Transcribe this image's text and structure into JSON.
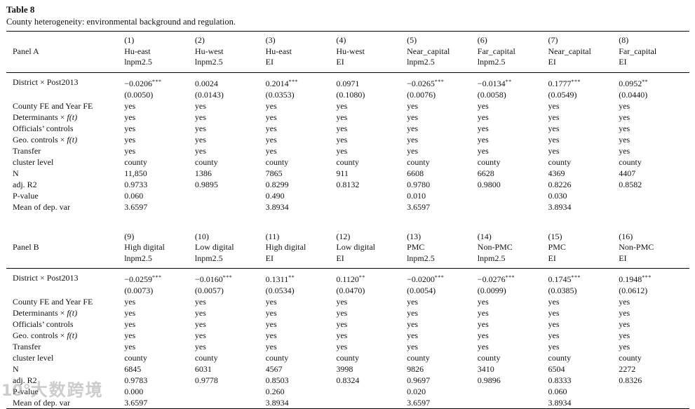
{
  "watermark": {
    "prefix": "10°",
    "text": "大数跨境"
  },
  "table": {
    "label": "Table 8",
    "caption": "County heterogeneity: environmental background and regulation.",
    "panels": [
      {
        "name": "Panel A",
        "columns": [
          {
            "num": "(1)",
            "group": "Hu-east",
            "depvar": "lnpm2.5"
          },
          {
            "num": "(2)",
            "group": "Hu-west",
            "depvar": "lnpm2.5"
          },
          {
            "num": "(3)",
            "group": "Hu-east",
            "depvar": "EI"
          },
          {
            "num": "(4)",
            "group": "Hu-west",
            "depvar": "EI"
          },
          {
            "num": "(5)",
            "group": "Near_capital",
            "depvar": "lnpm2.5"
          },
          {
            "num": "(6)",
            "group": "Far_capital",
            "depvar": "lnpm2.5"
          },
          {
            "num": "(7)",
            "group": "Near_capital",
            "depvar": "EI"
          },
          {
            "num": "(8)",
            "group": "Far_capital",
            "depvar": "EI"
          }
        ],
        "coef_row": {
          "label": {
            "pre": "District × Post2013"
          },
          "cells": [
            {
              "v": "−0.0206",
              "s": "***"
            },
            {
              "v": "0.0024",
              "s": ""
            },
            {
              "v": "0.2014",
              "s": "***"
            },
            {
              "v": "0.0971",
              "s": ""
            },
            {
              "v": "−0.0265",
              "s": "***"
            },
            {
              "v": "−0.0134",
              "s": "**"
            },
            {
              "v": "0.1777",
              "s": "***"
            },
            {
              "v": "0.0952",
              "s": "**"
            }
          ],
          "se": [
            "(0.0050)",
            "(0.0143)",
            "(0.0353)",
            "(0.1080)",
            "(0.0076)",
            "(0.0058)",
            "(0.0549)",
            "(0.0440)"
          ]
        },
        "rows": [
          {
            "label": {
              "pre": "County FE and Year FE"
            },
            "values": [
              "yes",
              "yes",
              "yes",
              "yes",
              "yes",
              "yes",
              "yes",
              "yes"
            ]
          },
          {
            "label": {
              "pre": "Determinants × ",
              "it": "f(t)"
            },
            "values": [
              "yes",
              "yes",
              "yes",
              "yes",
              "yes",
              "yes",
              "yes",
              "yes"
            ]
          },
          {
            "label": {
              "pre": "Officials’ controls"
            },
            "values": [
              "yes",
              "yes",
              "yes",
              "yes",
              "yes",
              "yes",
              "yes",
              "yes"
            ]
          },
          {
            "label": {
              "pre": "Geo. controls × ",
              "it": "f(t)"
            },
            "values": [
              "yes",
              "yes",
              "yes",
              "yes",
              "yes",
              "yes",
              "yes",
              "yes"
            ]
          },
          {
            "label": {
              "pre": "Transfer"
            },
            "values": [
              "yes",
              "yes",
              "yes",
              "yes",
              "yes",
              "yes",
              "yes",
              "yes"
            ]
          },
          {
            "label": {
              "pre": "cluster level"
            },
            "values": [
              "county",
              "county",
              "county",
              "county",
              "county",
              "county",
              "county",
              "county"
            ]
          },
          {
            "label": {
              "pre": "N"
            },
            "values": [
              "11,850",
              "1386",
              "7865",
              "911",
              "6608",
              "6628",
              "4369",
              "4407"
            ]
          },
          {
            "label": {
              "pre": "adj. R2"
            },
            "values": [
              "0.9733",
              "0.9895",
              "0.8299",
              "0.8132",
              "0.9780",
              "0.9800",
              "0.8226",
              "0.8582"
            ]
          },
          {
            "label": {
              "pre": "P-value"
            },
            "values": [
              "0.060",
              "",
              "0.490",
              "",
              "0.010",
              "",
              "0.030",
              ""
            ]
          },
          {
            "label": {
              "pre": "Mean of dep. var"
            },
            "values": [
              "3.6597",
              "",
              "3.8934",
              "",
              "3.6597",
              "",
              "3.8934",
              ""
            ]
          }
        ]
      },
      {
        "name": "Panel B",
        "columns": [
          {
            "num": "(9)",
            "group": "High digital",
            "depvar": "lnpm2.5"
          },
          {
            "num": "(10)",
            "group": "Low digital",
            "depvar": "lnpm2.5"
          },
          {
            "num": "(11)",
            "group": "High digital",
            "depvar": "EI"
          },
          {
            "num": "(12)",
            "group": "Low digital",
            "depvar": "EI"
          },
          {
            "num": "(13)",
            "group": "PMC",
            "depvar": "lnpm2.5"
          },
          {
            "num": "(14)",
            "group": "Non-PMC",
            "depvar": "lnpm2.5"
          },
          {
            "num": "(15)",
            "group": "PMC",
            "depvar": "EI"
          },
          {
            "num": "(16)",
            "group": "Non-PMC",
            "depvar": "EI"
          }
        ],
        "coef_row": {
          "label": {
            "pre": "District × Post2013"
          },
          "cells": [
            {
              "v": "−0.0259",
              "s": "***"
            },
            {
              "v": "−0.0160",
              "s": "***"
            },
            {
              "v": "0.1311",
              "s": "**"
            },
            {
              "v": "0.1120",
              "s": "**"
            },
            {
              "v": "−0.0200",
              "s": "***"
            },
            {
              "v": "−0.0276",
              "s": "***"
            },
            {
              "v": "0.1745",
              "s": "***"
            },
            {
              "v": "0.1948",
              "s": "***"
            }
          ],
          "se": [
            "(0.0073)",
            "(0.0057)",
            "(0.0534)",
            "(0.0470)",
            "(0.0054)",
            "(0.0099)",
            "(0.0385)",
            "(0.0612)"
          ]
        },
        "rows": [
          {
            "label": {
              "pre": "County FE and Year FE"
            },
            "values": [
              "yes",
              "yes",
              "yes",
              "yes",
              "yes",
              "yes",
              "yes",
              "yes"
            ]
          },
          {
            "label": {
              "pre": "Determinants × ",
              "it": "f(t)"
            },
            "values": [
              "yes",
              "yes",
              "yes",
              "yes",
              "yes",
              "yes",
              "yes",
              "yes"
            ]
          },
          {
            "label": {
              "pre": "Officials’ controls"
            },
            "values": [
              "yes",
              "yes",
              "yes",
              "yes",
              "yes",
              "yes",
              "yes",
              "yes"
            ]
          },
          {
            "label": {
              "pre": "Geo. controls × ",
              "it": "f(t)"
            },
            "values": [
              "yes",
              "yes",
              "yes",
              "yes",
              "yes",
              "yes",
              "yes",
              "yes"
            ]
          },
          {
            "label": {
              "pre": "Transfer"
            },
            "values": [
              "yes",
              "yes",
              "yes",
              "yes",
              "yes",
              "yes",
              "yes",
              "yes"
            ]
          },
          {
            "label": {
              "pre": "cluster level"
            },
            "values": [
              "county",
              "county",
              "county",
              "county",
              "county",
              "county",
              "county",
              "county"
            ]
          },
          {
            "label": {
              "pre": "N"
            },
            "values": [
              "6845",
              "6031",
              "4567",
              "3998",
              "9826",
              "3410",
              "6504",
              "2272"
            ]
          },
          {
            "label": {
              "pre": "adj. R2"
            },
            "values": [
              "0.9783",
              "0.9778",
              "0.8503",
              "0.8324",
              "0.9697",
              "0.9896",
              "0.8333",
              "0.8326"
            ]
          },
          {
            "label": {
              "pre": "P-value"
            },
            "values": [
              "0.000",
              "",
              "0.260",
              "",
              "0.020",
              "",
              "0.060",
              ""
            ]
          },
          {
            "label": {
              "pre": "Mean of dep. var"
            },
            "values": [
              "3.6597",
              "",
              "3.8934",
              "",
              "3.6597",
              "",
              "3.8934",
              ""
            ]
          }
        ]
      }
    ]
  }
}
